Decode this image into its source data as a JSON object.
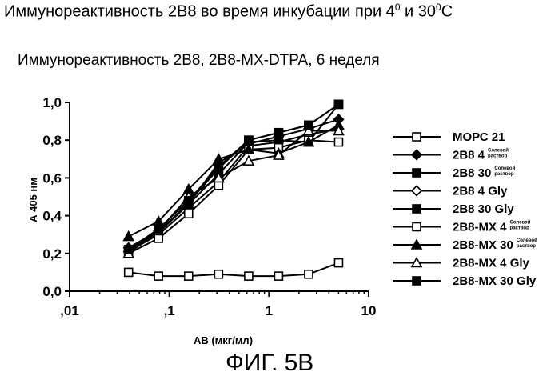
{
  "page": {
    "title_main": "Иммунореактивность 2В8 во время инкубации при 4",
    "title_sup1": "0",
    "title_mid": " и 30",
    "title_sup2": "0",
    "title_end": "С",
    "figure_label": "ФИГ. 5В"
  },
  "chart_data": {
    "type": "line",
    "title": "Иммунореактивность 2В8, 2В8-МХ-DTPA, 6 неделя",
    "xlabel": "АВ (мкг/мл)",
    "ylabel": "А 405 нм",
    "xscale": "log",
    "xlim": [
      0.01,
      10
    ],
    "ylim": [
      0,
      1.0
    ],
    "x_tick_values": [
      0.01,
      0.1,
      1,
      10
    ],
    "x_tick_labels": [
      ",01",
      ",1",
      "1",
      "10"
    ],
    "y_tick_values": [
      0,
      0.2,
      0.4,
      0.6,
      0.8,
      1.0
    ],
    "y_tick_labels": [
      "0,0",
      "0,2",
      "0,4",
      "0,6",
      "0,8",
      "1,0"
    ],
    "legend_position": "right",
    "x": [
      0.039,
      0.078,
      0.156,
      0.3125,
      0.625,
      1.25,
      2.5,
      5
    ],
    "series": [
      {
        "name": "МОРС 21",
        "sub": [],
        "marker": "square-open",
        "values": [
          0.1,
          0.08,
          0.08,
          0.09,
          0.08,
          0.08,
          0.09,
          0.15
        ]
      },
      {
        "name": "2В8 4",
        "sub": [
          "Солевой",
          "раствор"
        ],
        "marker": "diamond-filled",
        "values": [
          0.23,
          0.32,
          0.46,
          0.68,
          0.78,
          0.82,
          0.86,
          0.91
        ]
      },
      {
        "name": "2В8 30",
        "sub": [
          "Солевой",
          "раствор"
        ],
        "marker": "square-filled",
        "values": [
          0.22,
          0.31,
          0.47,
          0.65,
          0.8,
          0.84,
          0.88,
          0.99
        ]
      },
      {
        "name": "2В8 4 Gly",
        "sub": [],
        "marker": "diamond-open",
        "values": [
          0.21,
          0.3,
          0.44,
          0.58,
          0.77,
          0.79,
          0.83,
          0.86
        ]
      },
      {
        "name": "2В8 30 Gly",
        "sub": [],
        "marker": "square-filled",
        "values": [
          0.22,
          0.31,
          0.46,
          0.62,
          0.79,
          0.8,
          0.79,
          0.99
        ]
      },
      {
        "name": "2В8-МХ 4",
        "sub": [
          "Солевой",
          "раствор"
        ],
        "marker": "square-open",
        "values": [
          0.2,
          0.28,
          0.41,
          0.56,
          0.75,
          0.76,
          0.8,
          0.79
        ]
      },
      {
        "name": "2В8-МХ 30",
        "sub": [
          "Солевой",
          "раствор"
        ],
        "marker": "triangle-filled",
        "values": [
          0.29,
          0.37,
          0.54,
          0.7,
          0.75,
          0.73,
          0.79,
          0.88
        ]
      },
      {
        "name": "2В8-МХ 4 Gly",
        "sub": [],
        "marker": "triangle-open",
        "values": [
          0.2,
          0.32,
          0.5,
          0.6,
          0.69,
          0.72,
          0.85,
          0.85
        ]
      },
      {
        "name": "2В8-МХ 30 Gly",
        "sub": [],
        "marker": "square-filled",
        "values": [
          0.22,
          0.33,
          0.48,
          0.66,
          0.8,
          0.84,
          0.88,
          0.99
        ]
      }
    ]
  }
}
